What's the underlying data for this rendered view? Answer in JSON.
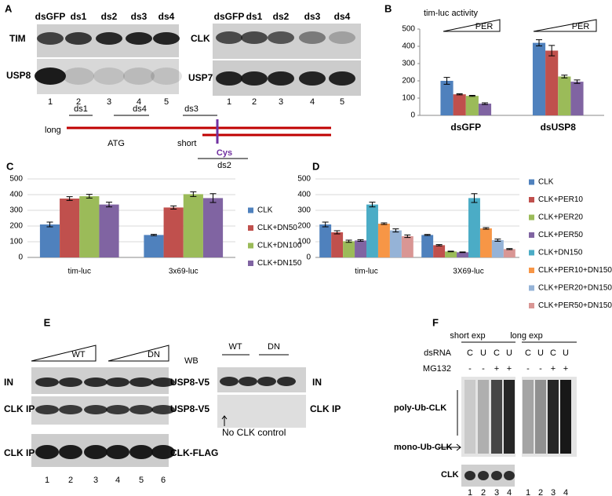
{
  "panels": {
    "A": {
      "label": "A",
      "blot_1": {
        "lanes": [
          "dsGFP",
          "ds1",
          "ds2",
          "ds3",
          "ds4"
        ],
        "rows": [
          "TIM",
          "USP8"
        ],
        "lane_numbers": [
          1,
          2,
          3,
          4,
          5
        ]
      },
      "blot_2": {
        "lanes": [
          "dsGFP",
          "ds1",
          "ds2",
          "ds3",
          "ds4"
        ],
        "rows": [
          "CLK",
          "USP7"
        ],
        "lane_numbers": [
          1,
          2,
          3,
          4,
          5
        ]
      },
      "gene_map": {
        "transcripts": [
          "long",
          "short"
        ],
        "start": "ATG",
        "site": "Cys",
        "fragments": [
          "ds1",
          "ds4",
          "ds3",
          "ds2"
        ]
      }
    },
    "E": {
      "label": "E",
      "blot_1": {
        "groups": [
          "WT",
          "DN"
        ],
        "method": "WB",
        "rows": [
          "IN",
          "CLK IP",
          "CLK IP"
        ],
        "antibodies": [
          "USP8-V5",
          "USP8-V5",
          "CLK-FLAG"
        ],
        "lane_numbers": [
          1,
          2,
          3,
          4,
          5,
          6
        ]
      },
      "blot_2": {
        "groups": [
          "WT",
          "DN"
        ],
        "rows": [
          "IN",
          "CLK IP"
        ],
        "note": "No CLK control"
      }
    },
    "F": {
      "label": "F",
      "exposures": [
        "short exp",
        "long exp"
      ],
      "conditions": [
        {
          "name": "dsRNA",
          "values": [
            "C",
            "U",
            "C",
            "U"
          ]
        },
        {
          "name": "MG132",
          "values": [
            "-",
            "-",
            "+",
            "+"
          ]
        }
      ],
      "bands": [
        "poly-Ub-CLK",
        "mono-Ub-CLK"
      ],
      "loading": "CLK",
      "lane_numbers": [
        1,
        2,
        3,
        4
      ]
    }
  },
  "chart_data": [
    {
      "type": "bar",
      "panel_label": "B",
      "title": "tim-luc activity",
      "annotations": [
        "PER",
        "PER"
      ],
      "categories": [
        "dsGFP",
        "dsUSP8"
      ],
      "series": [
        {
          "color": "#4f81bd",
          "values": [
            200,
            420
          ],
          "errors": [
            20,
            18
          ]
        },
        {
          "color": "#c0504d",
          "values": [
            122,
            375
          ],
          "errors": [
            3,
            30
          ]
        },
        {
          "color": "#9bbb59",
          "values": [
            113,
            225
          ],
          "errors": [
            3,
            8
          ]
        },
        {
          "color": "#8064a2",
          "values": [
            68,
            195
          ],
          "errors": [
            5,
            10
          ]
        }
      ],
      "ylim": [
        0,
        500
      ],
      "yticks": [
        0,
        100,
        200,
        300,
        400,
        500
      ],
      "grid": false
    },
    {
      "type": "bar",
      "panel_label": "C",
      "categories": [
        "tim-luc",
        "3x69-luc"
      ],
      "series": [
        {
          "name": "CLK",
          "color": "#4f81bd",
          "values": [
            210,
            143
          ],
          "errors": [
            15,
            4
          ]
        },
        {
          "name": "CLK+DN50",
          "color": "#c0504d",
          "values": [
            375,
            318
          ],
          "errors": [
            12,
            10
          ]
        },
        {
          "name": "CLK+DN100",
          "color": "#9bbb59",
          "values": [
            390,
            403
          ],
          "errors": [
            12,
            15
          ]
        },
        {
          "name": "CLK+DN150",
          "color": "#8064a2",
          "values": [
            337,
            378
          ],
          "errors": [
            15,
            28
          ]
        }
      ],
      "ylim": [
        0,
        500
      ],
      "yticks": [
        0,
        100,
        200,
        300,
        400,
        500
      ],
      "grid": true,
      "legend": "right"
    },
    {
      "type": "bar",
      "panel_label": "D",
      "categories": [
        "tim-luc",
        "3X69-luc"
      ],
      "series": [
        {
          "name": "CLK",
          "color": "#4f81bd",
          "values": [
            210,
            143
          ],
          "errors": [
            15,
            3
          ]
        },
        {
          "name": "CLK+PER10",
          "color": "#c0504d",
          "values": [
            160,
            78
          ],
          "errors": [
            10,
            4
          ]
        },
        {
          "name": "CLK+PER20",
          "color": "#9bbb59",
          "values": [
            103,
            38
          ],
          "errors": [
            7,
            2
          ]
        },
        {
          "name": "CLK+PER50",
          "color": "#8064a2",
          "values": [
            108,
            33
          ],
          "errors": [
            5,
            2
          ]
        },
        {
          "name": "CLK+DN150",
          "color": "#4bacc6",
          "values": [
            337,
            378
          ],
          "errors": [
            15,
            28
          ]
        },
        {
          "name": "CLK+PER10+DN150",
          "color": "#f79646",
          "values": [
            215,
            185
          ],
          "errors": [
            5,
            5
          ]
        },
        {
          "name": "CLK+PER20+DN150",
          "color": "#95b3d7",
          "values": [
            172,
            110
          ],
          "errors": [
            10,
            7
          ]
        },
        {
          "name": "CLK+PER50+DN150",
          "color": "#d99694",
          "values": [
            135,
            53
          ],
          "errors": [
            8,
            3
          ]
        }
      ],
      "ylim": [
        0,
        500
      ],
      "yticks": [
        0,
        100,
        200,
        300,
        400,
        500
      ],
      "grid": true,
      "legend": "right"
    }
  ]
}
